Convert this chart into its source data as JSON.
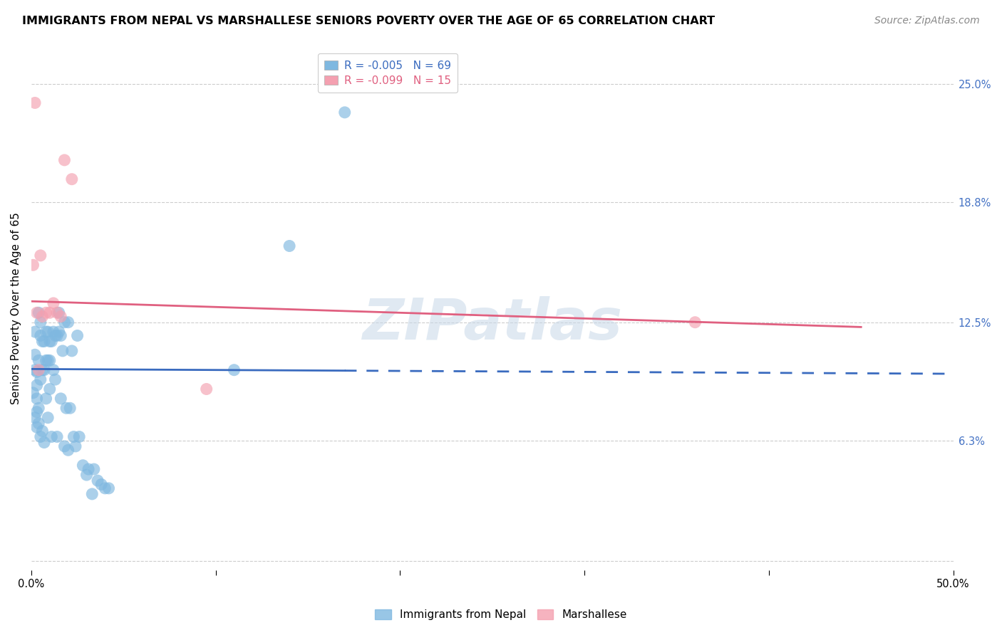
{
  "title": "IMMIGRANTS FROM NEPAL VS MARSHALLESE SENIORS POVERTY OVER THE AGE OF 65 CORRELATION CHART",
  "source": "Source: ZipAtlas.com",
  "ylabel": "Seniors Poverty Over the Age of 65",
  "xlim": [
    0.0,
    0.5
  ],
  "ylim": [
    -0.005,
    0.27
  ],
  "xticks": [
    0.0,
    0.1,
    0.2,
    0.3,
    0.4,
    0.5
  ],
  "xticklabels": [
    "0.0%",
    "",
    "",
    "",
    "",
    "50.0%"
  ],
  "ytick_positions": [
    0.0,
    0.063,
    0.125,
    0.188,
    0.25
  ],
  "ytick_labels": [
    "",
    "6.3%",
    "12.5%",
    "18.8%",
    "25.0%"
  ],
  "legend_R1": "R = -0.005",
  "legend_N1": "N = 69",
  "legend_R2": "R = -0.099",
  "legend_N2": "N = 15",
  "nepal_color": "#7fb8e0",
  "nepal_line_color": "#3a6bbf",
  "marshallese_color": "#f4a0b0",
  "marshallese_line_color": "#e06080",
  "watermark": "ZIPatlas",
  "nepal_scatter_x": [
    0.001,
    0.002,
    0.002,
    0.002,
    0.002,
    0.003,
    0.003,
    0.003,
    0.003,
    0.003,
    0.004,
    0.004,
    0.004,
    0.004,
    0.005,
    0.005,
    0.005,
    0.005,
    0.006,
    0.006,
    0.006,
    0.007,
    0.007,
    0.007,
    0.008,
    0.008,
    0.008,
    0.009,
    0.009,
    0.009,
    0.01,
    0.01,
    0.01,
    0.011,
    0.011,
    0.012,
    0.012,
    0.013,
    0.013,
    0.014,
    0.014,
    0.015,
    0.015,
    0.016,
    0.016,
    0.017,
    0.018,
    0.018,
    0.019,
    0.02,
    0.02,
    0.021,
    0.022,
    0.023,
    0.024,
    0.025,
    0.026,
    0.028,
    0.03,
    0.031,
    0.033,
    0.034,
    0.036,
    0.038,
    0.04,
    0.042,
    0.11,
    0.14,
    0.17
  ],
  "nepal_scatter_y": [
    0.088,
    0.12,
    0.108,
    0.1,
    0.075,
    0.099,
    0.092,
    0.085,
    0.078,
    0.07,
    0.13,
    0.105,
    0.08,
    0.072,
    0.125,
    0.118,
    0.095,
    0.065,
    0.115,
    0.1,
    0.068,
    0.115,
    0.1,
    0.062,
    0.12,
    0.105,
    0.085,
    0.12,
    0.105,
    0.075,
    0.115,
    0.105,
    0.09,
    0.115,
    0.065,
    0.12,
    0.1,
    0.118,
    0.095,
    0.118,
    0.065,
    0.13,
    0.12,
    0.118,
    0.085,
    0.11,
    0.125,
    0.06,
    0.08,
    0.125,
    0.058,
    0.08,
    0.11,
    0.065,
    0.06,
    0.118,
    0.065,
    0.05,
    0.045,
    0.048,
    0.035,
    0.048,
    0.042,
    0.04,
    0.038,
    0.038,
    0.1,
    0.165,
    0.235
  ],
  "marshallese_scatter_x": [
    0.001,
    0.002,
    0.003,
    0.004,
    0.005,
    0.006,
    0.008,
    0.01,
    0.012,
    0.014,
    0.016,
    0.018,
    0.022,
    0.36,
    0.095
  ],
  "marshallese_scatter_y": [
    0.155,
    0.24,
    0.13,
    0.1,
    0.16,
    0.128,
    0.13,
    0.13,
    0.135,
    0.13,
    0.128,
    0.21,
    0.2,
    0.125,
    0.09
  ],
  "nepal_line_x0": 0.0,
  "nepal_line_x_solid_end": 0.17,
  "nepal_line_x1": 0.5,
  "nepal_line_y0": 0.1005,
  "nepal_line_y1": 0.098,
  "marshallese_line_x0": 0.0,
  "marshallese_line_x1": 0.5,
  "marshallese_line_y0": 0.136,
  "marshallese_line_y1": 0.121,
  "grid_color": "#cccccc",
  "background_color": "#ffffff",
  "title_fontsize": 11.5,
  "source_fontsize": 10,
  "axis_label_fontsize": 11,
  "tick_fontsize": 10.5,
  "legend_fontsize": 11
}
